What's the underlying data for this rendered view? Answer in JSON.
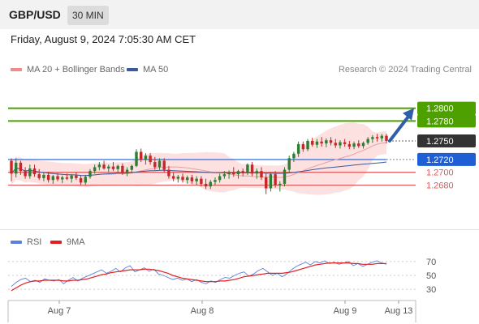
{
  "header": {
    "symbol": "GBP/USD",
    "timeframe": "30 MIN"
  },
  "datetime": "Friday, August 9, 2024 7:05:30 AM CET",
  "legend": {
    "item1": "MA 20 + Bollinger Bands",
    "item2": "MA 50",
    "credit": "Research © 2024 Trading Central"
  },
  "rsi_legend": {
    "item1": "RSI",
    "item2": "9MA"
  },
  "colors": {
    "up": "#2e7d32",
    "down": "#c62828",
    "target": "#4ea000",
    "support": "#1f5fd6",
    "resistance": "#e05555",
    "ma20": "#e9a0a0",
    "ma50": "#3a5a9b",
    "band": "#fde0e0",
    "rsi": "#5b7fde",
    "rsi_ma": "#e02020",
    "arrow": "#2f5fa8",
    "current": "#333333"
  },
  "chart_data": [
    {
      "type": "candlestick",
      "title": "GBP/USD",
      "x_labels": [
        "Aug 7",
        "Aug 8",
        "Aug 9",
        "Aug 13"
      ],
      "ylim": [
        1.2615,
        1.2845
      ],
      "current_price": "1.2750",
      "levels": [
        {
          "label": "1.2800",
          "value": 1.28,
          "kind": "target"
        },
        {
          "label": "1.2780",
          "value": 1.278,
          "kind": "target"
        },
        {
          "label": "1.2720",
          "value": 1.272,
          "kind": "support"
        },
        {
          "label": "1.2700",
          "value": 1.27,
          "kind": "resistance"
        },
        {
          "label": "1.2680",
          "value": 1.268,
          "kind": "resistance"
        }
      ],
      "candles": [
        [
          1.2718,
          1.2722,
          1.2686,
          1.2698
        ],
        [
          1.2698,
          1.2722,
          1.2692,
          1.2715
        ],
        [
          1.2715,
          1.2718,
          1.2696,
          1.2702
        ],
        [
          1.2702,
          1.2708,
          1.269,
          1.2694
        ],
        [
          1.2694,
          1.2712,
          1.269,
          1.2706
        ],
        [
          1.2706,
          1.2712,
          1.2693,
          1.2697
        ],
        [
          1.2697,
          1.2705,
          1.2688,
          1.2691
        ],
        [
          1.2691,
          1.27,
          1.2686,
          1.2696
        ],
        [
          1.2696,
          1.2701,
          1.2684,
          1.2688
        ],
        [
          1.2688,
          1.2696,
          1.2682,
          1.2694
        ],
        [
          1.2694,
          1.2699,
          1.2686,
          1.2689
        ],
        [
          1.2689,
          1.2695,
          1.2683,
          1.2692
        ],
        [
          1.2692,
          1.2698,
          1.2688,
          1.269
        ],
        [
          1.269,
          1.2697,
          1.2684,
          1.2695
        ],
        [
          1.2695,
          1.27,
          1.2688,
          1.2691
        ],
        [
          1.2691,
          1.2695,
          1.268,
          1.2684
        ],
        [
          1.2684,
          1.2696,
          1.268,
          1.2693
        ],
        [
          1.2693,
          1.2705,
          1.269,
          1.2702
        ],
        [
          1.2702,
          1.2712,
          1.2698,
          1.2708
        ],
        [
          1.2708,
          1.2716,
          1.2703,
          1.2712
        ],
        [
          1.2712,
          1.2718,
          1.2704,
          1.2706
        ],
        [
          1.2706,
          1.2712,
          1.27,
          1.2709
        ],
        [
          1.2709,
          1.2716,
          1.2702,
          1.2705
        ],
        [
          1.2705,
          1.2712,
          1.27,
          1.271
        ],
        [
          1.271,
          1.2714,
          1.2696,
          1.27
        ],
        [
          1.27,
          1.2708,
          1.2694,
          1.2704
        ],
        [
          1.2704,
          1.2712,
          1.27,
          1.271
        ],
        [
          1.271,
          1.2736,
          1.2708,
          1.2732
        ],
        [
          1.2732,
          1.2737,
          1.2716,
          1.272
        ],
        [
          1.272,
          1.273,
          1.2712,
          1.2726
        ],
        [
          1.2726,
          1.273,
          1.2712,
          1.2716
        ],
        [
          1.2716,
          1.2724,
          1.2704,
          1.2708
        ],
        [
          1.2708,
          1.2722,
          1.2704,
          1.2718
        ],
        [
          1.2718,
          1.2722,
          1.27,
          1.2704
        ],
        [
          1.2704,
          1.271,
          1.269,
          1.2694
        ],
        [
          1.2694,
          1.27,
          1.2686,
          1.269
        ],
        [
          1.269,
          1.2696,
          1.2684,
          1.2693
        ],
        [
          1.2693,
          1.2698,
          1.2684,
          1.2688
        ],
        [
          1.2688,
          1.2695,
          1.2682,
          1.2692
        ],
        [
          1.2692,
          1.2696,
          1.2682,
          1.2686
        ],
        [
          1.2686,
          1.2694,
          1.268,
          1.269
        ],
        [
          1.269,
          1.2694,
          1.2678,
          1.2682
        ],
        [
          1.2682,
          1.269,
          1.2674,
          1.2678
        ],
        [
          1.2678,
          1.2688,
          1.2674,
          1.2685
        ],
        [
          1.2685,
          1.2692,
          1.268,
          1.2688
        ],
        [
          1.2688,
          1.2698,
          1.2684,
          1.2694
        ],
        [
          1.2694,
          1.2702,
          1.269,
          1.2697
        ],
        [
          1.2697,
          1.2703,
          1.269,
          1.27
        ],
        [
          1.27,
          1.2708,
          1.2693,
          1.2697
        ],
        [
          1.2697,
          1.2704,
          1.269,
          1.2702
        ],
        [
          1.2702,
          1.2706,
          1.2694,
          1.2699
        ],
        [
          1.2699,
          1.2714,
          1.2696,
          1.2712
        ],
        [
          1.2712,
          1.2716,
          1.2694,
          1.2698
        ],
        [
          1.2698,
          1.2706,
          1.269,
          1.2702
        ],
        [
          1.2702,
          1.2708,
          1.2688,
          1.2692
        ],
        [
          1.2692,
          1.2698,
          1.2666,
          1.2675
        ],
        [
          1.2675,
          1.27,
          1.267,
          1.2697
        ],
        [
          1.2697,
          1.2702,
          1.2676,
          1.268
        ],
        [
          1.268,
          1.2686,
          1.267,
          1.2682
        ],
        [
          1.2682,
          1.2708,
          1.2678,
          1.2704
        ],
        [
          1.2704,
          1.2726,
          1.27,
          1.2722
        ],
        [
          1.2722,
          1.2732,
          1.2716,
          1.2729
        ],
        [
          1.2729,
          1.2748,
          1.2724,
          1.2744
        ],
        [
          1.2744,
          1.2748,
          1.2732,
          1.2736
        ],
        [
          1.2736,
          1.2752,
          1.2733,
          1.2749
        ],
        [
          1.2749,
          1.2754,
          1.274,
          1.2743
        ],
        [
          1.2743,
          1.2752,
          1.2738,
          1.2748
        ],
        [
          1.2748,
          1.2755,
          1.274,
          1.2745
        ],
        [
          1.2745,
          1.2753,
          1.2739,
          1.275
        ],
        [
          1.275,
          1.2755,
          1.2742,
          1.2746
        ],
        [
          1.2746,
          1.2752,
          1.2738,
          1.2742
        ],
        [
          1.2742,
          1.275,
          1.2737,
          1.2747
        ],
        [
          1.2747,
          1.2752,
          1.274,
          1.2744
        ],
        [
          1.2744,
          1.2749,
          1.2736,
          1.274
        ],
        [
          1.274,
          1.2748,
          1.2736,
          1.2745
        ],
        [
          1.2745,
          1.275,
          1.2738,
          1.2741
        ],
        [
          1.2741,
          1.2748,
          1.2737,
          1.2746
        ],
        [
          1.2746,
          1.2755,
          1.2743,
          1.2752
        ],
        [
          1.2752,
          1.2758,
          1.2746,
          1.2755
        ],
        [
          1.2755,
          1.276,
          1.2748,
          1.2753
        ],
        [
          1.2753,
          1.276,
          1.2748,
          1.2757
        ],
        [
          1.2757,
          1.276,
          1.2745,
          1.2749
        ]
      ]
    },
    {
      "type": "line",
      "title": "RSI",
      "ylim": [
        15,
        85
      ],
      "y_ticks": [
        "70",
        "50",
        "30"
      ],
      "series": [
        {
          "name": "RSI",
          "values": [
            34,
            40,
            44,
            46,
            41,
            43,
            40,
            45,
            43,
            42,
            44,
            38,
            43,
            47,
            42,
            46,
            49,
            52,
            55,
            58,
            53,
            56,
            60,
            55,
            61,
            64,
            55,
            58,
            61,
            56,
            59,
            52,
            50,
            47,
            44,
            46,
            43,
            45,
            41,
            44,
            40,
            38,
            42,
            40,
            44,
            47,
            46,
            50,
            53,
            55,
            49,
            52,
            57,
            60,
            55,
            50,
            53,
            48,
            52,
            58,
            63,
            66,
            69,
            65,
            70,
            68,
            71,
            67,
            69,
            66,
            68,
            70,
            64,
            67,
            63,
            66,
            69,
            71,
            68,
            66
          ]
        },
        {
          "name": "9MA",
          "values": [
            28,
            32,
            36,
            39,
            41,
            42,
            42,
            43,
            43,
            43,
            43,
            42,
            42,
            43,
            43,
            44,
            45,
            47,
            49,
            51,
            52,
            54,
            55,
            56,
            57,
            58,
            58,
            58,
            59,
            59,
            58,
            57,
            55,
            53,
            50,
            48,
            46,
            45,
            44,
            43,
            42,
            41,
            41,
            41,
            42,
            42,
            43,
            44,
            46,
            48,
            49,
            50,
            51,
            52,
            53,
            53,
            53,
            53,
            54,
            55,
            57,
            59,
            61,
            63,
            65,
            66,
            67,
            68,
            68,
            68,
            68,
            68,
            67,
            67,
            66,
            66,
            66,
            67,
            67,
            67
          ]
        }
      ]
    }
  ]
}
